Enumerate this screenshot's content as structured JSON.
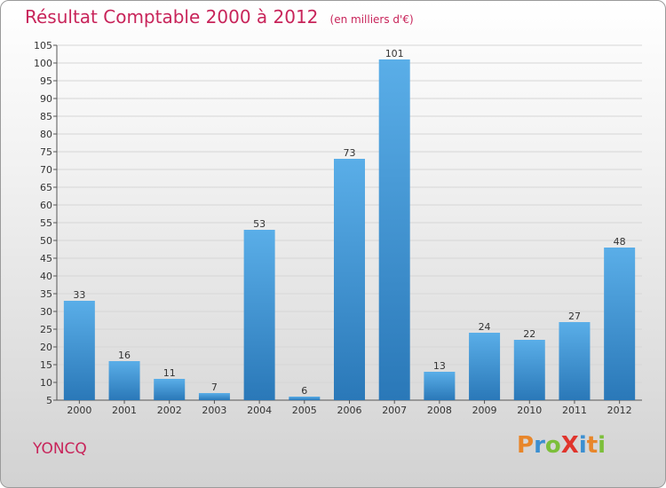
{
  "header": {
    "title": "Résultat Comptable 2000 à 2012",
    "unit": "(en milliers d'€)"
  },
  "footer": {
    "commune": "YONCQ",
    "brand": "ProXiti"
  },
  "colors": {
    "title": "#c8245a",
    "bar_light": "#5aaee8",
    "bar_dark": "#2a78b8",
    "brand_letters": [
      "#e8862a",
      "#3b8fd1",
      "#7cbf3a",
      "#e0342c",
      "#3b8fd1",
      "#e8862a",
      "#7cbf3a"
    ]
  },
  "chart_data": {
    "type": "bar",
    "title": "Résultat Comptable 2000 à 2012",
    "ylabel": "(en milliers d'€)",
    "xlabel": "",
    "categories": [
      "2000",
      "2001",
      "2002",
      "2003",
      "2004",
      "2005",
      "2006",
      "2007",
      "2008",
      "2009",
      "2010",
      "2011",
      "2012"
    ],
    "values": [
      33,
      16,
      11,
      7,
      53,
      6,
      73,
      101,
      13,
      24,
      22,
      27,
      48
    ],
    "ylim": [
      5,
      105
    ],
    "yticks": [
      5,
      10,
      15,
      20,
      25,
      30,
      35,
      40,
      45,
      50,
      55,
      60,
      65,
      70,
      75,
      80,
      85,
      90,
      95,
      100,
      105
    ],
    "grid": true,
    "legend": "none"
  }
}
